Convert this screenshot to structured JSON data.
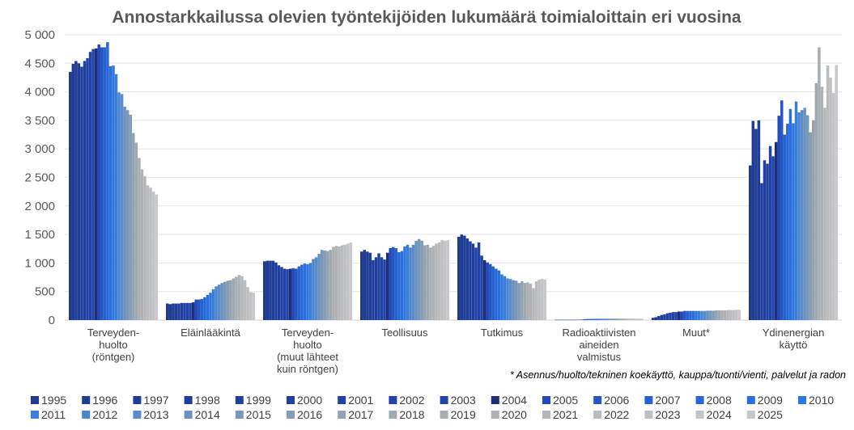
{
  "chart_data": {
    "type": "bar",
    "title": "Annostarkkailussa olevien työntekijöiden lukumäärä toimialoittain eri vuosina",
    "ylim": [
      0,
      5000
    ],
    "yticks": [
      "0",
      "500",
      "1 000",
      "1 500",
      "2 000",
      "2 500",
      "3 000",
      "3 500",
      "4 000",
      "4 500",
      "5 000"
    ],
    "categories": [
      "Terveyden-\nhuolto\n(röntgen)",
      "Eläinlääkintä",
      "Terveyden-\nhuolto\n(muut lähteet\nkuin röntgen)",
      "Teollisuus",
      "Tutkimus",
      "Radioaktiivisten\naineiden\nvalmistus",
      "Muut*",
      "Ydinenergian\nkäyttö"
    ],
    "footnote": "* Asennus/huolto/tekninen koekäyttö, kauppa/tuonti/vienti, palvelut ja radon",
    "legend_position": "bottom",
    "series_names": [
      "1995",
      "1996",
      "1997",
      "1998",
      "1999",
      "2000",
      "2001",
      "2002",
      "2003",
      "2004",
      "2005",
      "2006",
      "2007",
      "2008",
      "2009",
      "2010",
      "2011",
      "2012",
      "2013",
      "2014",
      "2015",
      "2016",
      "2017",
      "2018",
      "2019",
      "2020",
      "2021",
      "2022",
      "2023",
      "2024",
      "2025"
    ],
    "series_colors": [
      "#1f3a8f",
      "#1f3b92",
      "#203c96",
      "#203d99",
      "#213f9d",
      "#2140a0",
      "#2241a4",
      "#2242a7",
      "#2344ab",
      "#1c2f78",
      "#244ab5",
      "#2656c2",
      "#2760cf",
      "#2867d7",
      "#2a70dd",
      "#2c78e0",
      "#3a7ed9",
      "#4b85d0",
      "#5a8bc8",
      "#6a92c0",
      "#7898b8",
      "#869eb3",
      "#93a4b0",
      "#9ea9b0",
      "#a8aeb2",
      "#b0b2b5",
      "#b5b6b9",
      "#babbbd",
      "#bebfc2",
      "#c3c4c6",
      "#c8c8ca"
    ],
    "values": [
      [
        4350,
        4490,
        4540,
        4500,
        4440,
        4540,
        4590,
        4700,
        4750,
        4760,
        4830,
        4780,
        4780,
        4870,
        4450,
        4460,
        4310,
        3990,
        3960,
        3740,
        3680,
        3600,
        3280,
        3110,
        2840,
        2640,
        2520,
        2360,
        2320,
        2250,
        2200
      ],
      [
        290,
        280,
        290,
        290,
        290,
        300,
        300,
        300,
        300,
        310,
        360,
        360,
        370,
        400,
        440,
        480,
        540,
        590,
        620,
        650,
        670,
        690,
        700,
        730,
        760,
        790,
        770,
        700,
        580,
        490,
        480
      ],
      [
        1030,
        1040,
        1040,
        1040,
        1010,
        960,
        930,
        900,
        890,
        900,
        910,
        900,
        940,
        970,
        990,
        980,
        1000,
        1070,
        1100,
        1160,
        1230,
        1220,
        1210,
        1230,
        1280,
        1300,
        1290,
        1310,
        1320,
        1340,
        1360
      ],
      [
        1200,
        1230,
        1200,
        1180,
        1050,
        1100,
        1170,
        1100,
        1060,
        1180,
        1260,
        1280,
        1260,
        1190,
        1210,
        1290,
        1320,
        1270,
        1320,
        1390,
        1420,
        1390,
        1310,
        1320,
        1270,
        1300,
        1340,
        1360,
        1400,
        1390,
        1400
      ],
      [
        1460,
        1500,
        1480,
        1430,
        1380,
        1340,
        1270,
        1360,
        1130,
        1050,
        1010,
        980,
        940,
        900,
        870,
        800,
        770,
        730,
        720,
        700,
        690,
        650,
        680,
        650,
        660,
        640,
        560,
        680,
        710,
        720,
        710
      ],
      [
        5,
        5,
        6,
        6,
        6,
        6,
        6,
        7,
        7,
        8,
        15,
        18,
        20,
        22,
        22,
        22,
        23,
        23,
        24,
        24,
        25,
        25,
        25,
        25,
        25,
        25,
        25,
        25,
        25,
        25,
        25
      ],
      [
        40,
        50,
        70,
        90,
        100,
        120,
        130,
        140,
        140,
        150,
        150,
        160,
        160,
        160,
        160,
        160,
        160,
        160,
        160,
        165,
        165,
        165,
        170,
        170,
        170,
        170,
        175,
        175,
        175,
        180,
        180
      ],
      [
        2710,
        3490,
        3350,
        3500,
        2400,
        2800,
        2740,
        3050,
        2870,
        3120,
        3580,
        3850,
        3250,
        3440,
        3700,
        3450,
        3830,
        3640,
        3680,
        3720,
        3590,
        3290,
        3500,
        4150,
        4780,
        4090,
        3720,
        4460,
        4250,
        3980,
        4470
      ]
    ]
  }
}
